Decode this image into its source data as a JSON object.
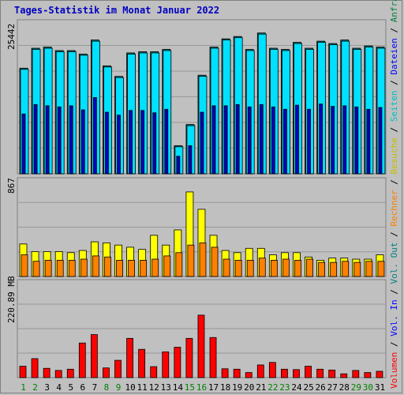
{
  "page": {
    "title": "Tages-Statistik im Monat Januar 2022"
  },
  "legend": [
    {
      "label": "Volumen",
      "color": "#ff0000"
    },
    {
      "label": " / ",
      "color": "#000000"
    },
    {
      "label": "Vol. In",
      "color": "#0000ff"
    },
    {
      "label": " / ",
      "color": "#000000"
    },
    {
      "label": "Vol. Out",
      "color": "#008080"
    },
    {
      "label": " / ",
      "color": "#000000"
    },
    {
      "label": "Rechner",
      "color": "#ff8000"
    },
    {
      "label": " / ",
      "color": "#000000"
    },
    {
      "label": "Besuche",
      "color": "#c0c000"
    },
    {
      "label": " / ",
      "color": "#000000"
    },
    {
      "label": "Seiten",
      "color": "#00c0c0"
    },
    {
      "label": " / ",
      "color": "#000000"
    },
    {
      "label": "Dateien",
      "color": "#0000ff"
    },
    {
      "label": " / ",
      "color": "#000000"
    },
    {
      "label": "Anfragen",
      "color": "#008040"
    }
  ],
  "chart_data": [
    {
      "type": "bar",
      "name": "Anfragen / Dateien / Seiten",
      "ylabel": "25442",
      "ymax": 25442,
      "categories": [
        "1",
        "2",
        "3",
        "4",
        "5",
        "6",
        "7",
        "8",
        "9",
        "10",
        "11",
        "12",
        "13",
        "14",
        "15",
        "16",
        "17",
        "18",
        "19",
        "20",
        "21",
        "22",
        "23",
        "24",
        "25",
        "26",
        "27",
        "28",
        "29",
        "30",
        "31"
      ],
      "weekend_days": [
        "1",
        "2",
        "8",
        "9",
        "15",
        "16",
        "22",
        "23",
        "29",
        "30"
      ],
      "weekend_color": "#008000",
      "weekday_color": "#000000",
      "series": [
        {
          "name": "Anfragen",
          "color": "#008080",
          "values": [
            18000,
            21400,
            21600,
            21000,
            21000,
            20400,
            22800,
            18400,
            16600,
            20600,
            20800,
            20800,
            21200,
            4800,
            8400,
            16800,
            21600,
            23000,
            23400,
            21200,
            24000,
            21400,
            21200,
            22400,
            21400,
            22600,
            22200,
            22800,
            21400,
            21800,
            21600
          ]
        },
        {
          "name": "Dateien",
          "color": "#00e0ff",
          "values": [
            17800,
            21200,
            21400,
            20800,
            20800,
            20200,
            22600,
            18200,
            16400,
            20400,
            20600,
            20600,
            21000,
            4600,
            8200,
            16600,
            21400,
            22800,
            23200,
            21000,
            23800,
            21200,
            21000,
            22200,
            21200,
            22400,
            22000,
            22600,
            21200,
            21600,
            21400
          ]
        },
        {
          "name": "Seiten",
          "color": "#0000c0",
          "values": [
            10200,
            11800,
            11600,
            11400,
            11600,
            10900,
            13000,
            10500,
            10000,
            10800,
            10800,
            10400,
            11000,
            3000,
            4800,
            10500,
            11600,
            11600,
            11800,
            11400,
            11800,
            11400,
            11000,
            11700,
            11000,
            11900,
            11500,
            11600,
            11400,
            11000,
            11300
          ]
        }
      ]
    },
    {
      "type": "bar",
      "name": "Besuche / Rechner",
      "ylabel": "867",
      "ymax": 867,
      "series": [
        {
          "name": "Besuche",
          "color": "#ffff00",
          "values": [
            300,
            230,
            230,
            230,
            220,
            240,
            320,
            310,
            290,
            270,
            250,
            380,
            290,
            430,
            780,
            620,
            380,
            240,
            220,
            260,
            260,
            200,
            220,
            220,
            180,
            150,
            170,
            170,
            160,
            160,
            200
          ]
        },
        {
          "name": "Rechner",
          "color": "#ff8000",
          "values": [
            200,
            140,
            150,
            150,
            150,
            160,
            190,
            180,
            150,
            150,
            150,
            160,
            190,
            220,
            290,
            310,
            270,
            160,
            150,
            150,
            170,
            150,
            160,
            150,
            160,
            130,
            130,
            140,
            130,
            140,
            140
          ]
        }
      ]
    },
    {
      "type": "bar",
      "name": "Volumen",
      "ylabel": "220.89 MB",
      "ymax": 220.89,
      "series": [
        {
          "name": "Volumen",
          "color": "#ff0000",
          "values": [
            27,
            45,
            22,
            17,
            20,
            82,
            102,
            23,
            41,
            93,
            67,
            26,
            61,
            72,
            93,
            148,
            95,
            21,
            20,
            12,
            30,
            36,
            20,
            19,
            27,
            20,
            18,
            9,
            17,
            12,
            15
          ]
        }
      ]
    }
  ]
}
